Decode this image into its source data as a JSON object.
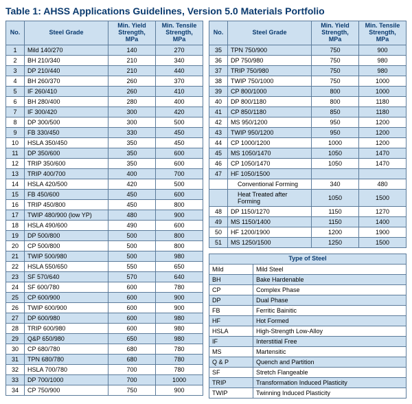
{
  "title": "Table 1: AHSS Applications Guidelines, Version 5.0 Materials Portfolio",
  "headers": {
    "no": "No.",
    "grade": "Steel Grade",
    "yield": "Min. Yield Strength, MPa",
    "tensile": "Min. Tensile Strength, MPa"
  },
  "left_rows": [
    {
      "no": "1",
      "grade": "Mild 140/270",
      "yield": "140",
      "tensile": "270",
      "hl": true
    },
    {
      "no": "2",
      "grade": "BH 210/340",
      "yield": "210",
      "tensile": "340",
      "hl": false
    },
    {
      "no": "3",
      "grade": "DP 210/440",
      "yield": "210",
      "tensile": "440",
      "hl": true
    },
    {
      "no": "4",
      "grade": "BH 260/370",
      "yield": "260",
      "tensile": "370",
      "hl": false
    },
    {
      "no": "5",
      "grade": "IF 260/410",
      "yield": "260",
      "tensile": "410",
      "hl": true
    },
    {
      "no": "6",
      "grade": "BH 280/400",
      "yield": "280",
      "tensile": "400",
      "hl": false
    },
    {
      "no": "7",
      "grade": "IF 300/420",
      "yield": "300",
      "tensile": "420",
      "hl": true
    },
    {
      "no": "8",
      "grade": "DP 300/500",
      "yield": "300",
      "tensile": "500",
      "hl": false
    },
    {
      "no": "9",
      "grade": "FB 330/450",
      "yield": "330",
      "tensile": "450",
      "hl": true
    },
    {
      "no": "10",
      "grade": "HSLA 350/450",
      "yield": "350",
      "tensile": "450",
      "hl": false
    },
    {
      "no": "11",
      "grade": "DP 350/600",
      "yield": "350",
      "tensile": "600",
      "hl": true
    },
    {
      "no": "12",
      "grade": "TRIP 350/600",
      "yield": "350",
      "tensile": "600",
      "hl": false
    },
    {
      "no": "13",
      "grade": "TRIP 400/700",
      "yield": "400",
      "tensile": "700",
      "hl": true
    },
    {
      "no": "14",
      "grade": "HSLA 420/500",
      "yield": "420",
      "tensile": "500",
      "hl": false
    },
    {
      "no": "15",
      "grade": "FB 450/600",
      "yield": "450",
      "tensile": "600",
      "hl": true
    },
    {
      "no": "16",
      "grade": "TRIP 450/800",
      "yield": "450",
      "tensile": "800",
      "hl": false
    },
    {
      "no": "17",
      "grade": "TWIP 480/900 (low YP)",
      "yield": "480",
      "tensile": "900",
      "hl": true
    },
    {
      "no": "18",
      "grade": "HSLA 490/600",
      "yield": "490",
      "tensile": "600",
      "hl": false
    },
    {
      "no": "19",
      "grade": "DP 500/800",
      "yield": "500",
      "tensile": "800",
      "hl": true
    },
    {
      "no": "20",
      "grade": "CP 500/800",
      "yield": "500",
      "tensile": "800",
      "hl": false
    },
    {
      "no": "21",
      "grade": "TWIP 500/980",
      "yield": "500",
      "tensile": "980",
      "hl": true
    },
    {
      "no": "22",
      "grade": "HSLA 550/650",
      "yield": "550",
      "tensile": "650",
      "hl": false
    },
    {
      "no": "23",
      "grade": "SF 570/640",
      "yield": "570",
      "tensile": "640",
      "hl": true
    },
    {
      "no": "24",
      "grade": "SF 600/780",
      "yield": "600",
      "tensile": "780",
      "hl": false
    },
    {
      "no": "25",
      "grade": "CP 600/900",
      "yield": "600",
      "tensile": "900",
      "hl": true
    },
    {
      "no": "26",
      "grade": "TWIP 600/900",
      "yield": "600",
      "tensile": "900",
      "hl": false
    },
    {
      "no": "27",
      "grade": "DP 600/980",
      "yield": "600",
      "tensile": "980",
      "hl": true
    },
    {
      "no": "28",
      "grade": "TRIP 600/980",
      "yield": "600",
      "tensile": "980",
      "hl": false
    },
    {
      "no": "29",
      "grade": "Q&P 650/980",
      "yield": "650",
      "tensile": "980",
      "hl": true
    },
    {
      "no": "30",
      "grade": "CP 680/780",
      "yield": "680",
      "tensile": "780",
      "hl": false
    },
    {
      "no": "31",
      "grade": "TPN 680/780",
      "yield": "680",
      "tensile": "780",
      "hl": true
    },
    {
      "no": "32",
      "grade": "HSLA 700/780",
      "yield": "700",
      "tensile": "780",
      "hl": false
    },
    {
      "no": "33",
      "grade": "DP 700/1000",
      "yield": "700",
      "tensile": "1000",
      "hl": true
    },
    {
      "no": "34",
      "grade": "CP 750/900",
      "yield": "750",
      "tensile": "900",
      "hl": false
    }
  ],
  "right_rows": [
    {
      "no": "35",
      "grade": "TPN 750/900",
      "yield": "750",
      "tensile": "900",
      "hl": true
    },
    {
      "no": "36",
      "grade": "DP 750/980",
      "yield": "750",
      "tensile": "980",
      "hl": false
    },
    {
      "no": "37",
      "grade": "TRIP 750/980",
      "yield": "750",
      "tensile": "980",
      "hl": true
    },
    {
      "no": "38",
      "grade": "TWIP 750/1000",
      "yield": "750",
      "tensile": "1000",
      "hl": false
    },
    {
      "no": "39",
      "grade": "CP 800/1000",
      "yield": "800",
      "tensile": "1000",
      "hl": true
    },
    {
      "no": "40",
      "grade": "DP 800/1180",
      "yield": "800",
      "tensile": "1180",
      "hl": false
    },
    {
      "no": "41",
      "grade": "CP 850/1180",
      "yield": "850",
      "tensile": "1180",
      "hl": true
    },
    {
      "no": "42",
      "grade": "MS 950/1200",
      "yield": "950",
      "tensile": "1200",
      "hl": false
    },
    {
      "no": "43",
      "grade": "TWIP 950/1200",
      "yield": "950",
      "tensile": "1200",
      "hl": true
    },
    {
      "no": "44",
      "grade": "CP 1000/1200",
      "yield": "1000",
      "tensile": "1200",
      "hl": false
    },
    {
      "no": "45",
      "grade": "MS 1050/1470",
      "yield": "1050",
      "tensile": "1470",
      "hl": true
    },
    {
      "no": "46",
      "grade": "CP 1050/1470",
      "yield": "1050",
      "tensile": "1470",
      "hl": false
    },
    {
      "no": "47",
      "grade": "HF 1050/1500",
      "yield": "",
      "tensile": "",
      "hl": true
    },
    {
      "no": "",
      "grade": "Conventional Forming",
      "yield": "340",
      "tensile": "480",
      "hl": false,
      "sub": true
    },
    {
      "no": "",
      "grade": "Heat Treated after Forming",
      "yield": "1050",
      "tensile": "1500",
      "hl": true,
      "sub": true
    },
    {
      "no": "48",
      "grade": "DP 1150/1270",
      "yield": "1150",
      "tensile": "1270",
      "hl": false
    },
    {
      "no": "49",
      "grade": "MS 1150/1400",
      "yield": "1150",
      "tensile": "1400",
      "hl": true
    },
    {
      "no": "50",
      "grade": "HF 1200/1900",
      "yield": "1200",
      "tensile": "1900",
      "hl": false
    },
    {
      "no": "51",
      "grade": "MS 1250/1500",
      "yield": "1250",
      "tensile": "1500",
      "hl": true
    }
  ],
  "legend": {
    "title": "Type of Steel",
    "rows": [
      {
        "abbr": "Mild",
        "name": "Mild Steel",
        "hl": false
      },
      {
        "abbr": "BH",
        "name": "Bake Hardenable",
        "hl": true
      },
      {
        "abbr": "CP",
        "name": "Complex Phase",
        "hl": false
      },
      {
        "abbr": "DP",
        "name": "Dual Phase",
        "hl": true
      },
      {
        "abbr": "FB",
        "name": "Ferritic Bainitic",
        "hl": false
      },
      {
        "abbr": "HF",
        "name": "Hot Formed",
        "hl": true
      },
      {
        "abbr": "HSLA",
        "name": "High-Strength Low-Alloy",
        "hl": false
      },
      {
        "abbr": "IF",
        "name": "Interstitial Free",
        "hl": true
      },
      {
        "abbr": "MS",
        "name": "Martensitic",
        "hl": false
      },
      {
        "abbr": "Q & P",
        "name": "Quench and Partition",
        "hl": true
      },
      {
        "abbr": "SF",
        "name": "Stretch Flangeable",
        "hl": false
      },
      {
        "abbr": "TRIP",
        "name": "Transformation Induced Plasticity",
        "hl": true
      },
      {
        "abbr": "TWIP",
        "name": "Twinning Induced Plasticity",
        "hl": false
      }
    ]
  },
  "colors": {
    "highlight_bg": "#cde0f0",
    "border": "#5a7a9a",
    "title_color": "#0a3a6e"
  }
}
